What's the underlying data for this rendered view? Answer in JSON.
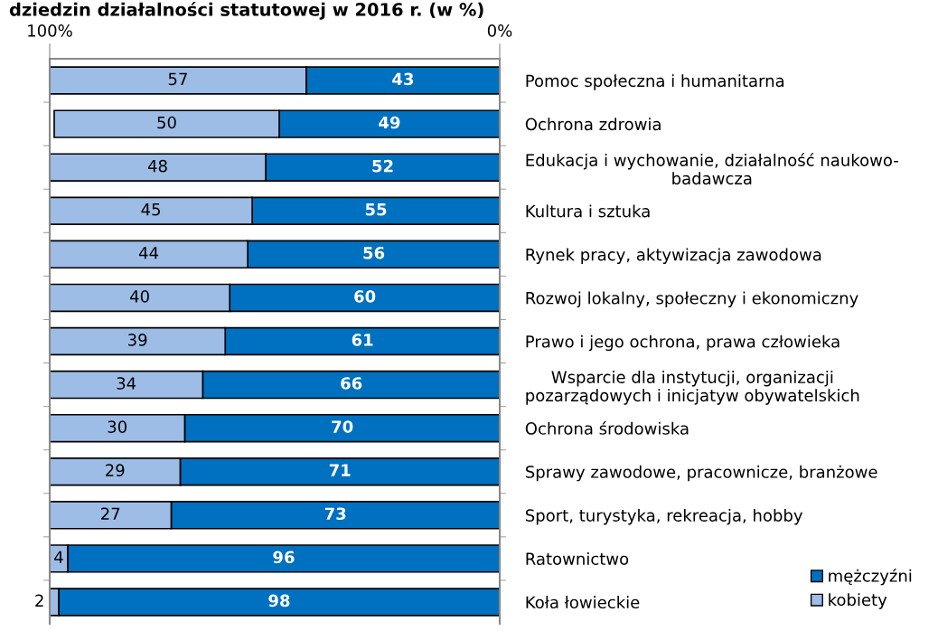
{
  "chart_data": {
    "type": "bar",
    "orientation": "horizontal",
    "stacked": true,
    "title": "dziedzin działalności statutowej w 2016 r. (w %)",
    "categories": [
      "Pomoc społeczna i humanitarna",
      "Ochrona zdrowia",
      "Edukacja i wychowanie, działalność naukowo-\nbadawcza",
      "Kultura i sztuka",
      "Rynek pracy, aktywizacja zawodowa",
      "Rozwoj lokalny, społeczny i ekonomiczny",
      "Prawo i jego ochrona, prawa człowieka",
      "Wsparcie dla instytucji, organizacji\npozarządowych i inicjatyw obywatelskich",
      "Ochrona środowiska",
      "Sprawy zawodowe, pracownicze, branżowe",
      "Sport, turystyka, rekreacja, hobby",
      "Ratownictwo",
      "Koła łowieckie"
    ],
    "series": [
      {
        "name": "mężczyźni",
        "color": "#0070c0",
        "values": [
          43,
          49,
          52,
          55,
          56,
          60,
          61,
          66,
          70,
          71,
          73,
          96,
          98
        ]
      },
      {
        "name": "kobiety",
        "color": "#9dbde6",
        "values": [
          57,
          50,
          48,
          45,
          44,
          40,
          39,
          34,
          30,
          29,
          27,
          4,
          2
        ]
      }
    ],
    "xlim": [
      100,
      0
    ],
    "xticks": [
      {
        "value": 100,
        "label": "100%"
      },
      {
        "value": 0,
        "label": "0%"
      }
    ],
    "data_labels": true,
    "legend": "bottom right",
    "grid": false
  }
}
